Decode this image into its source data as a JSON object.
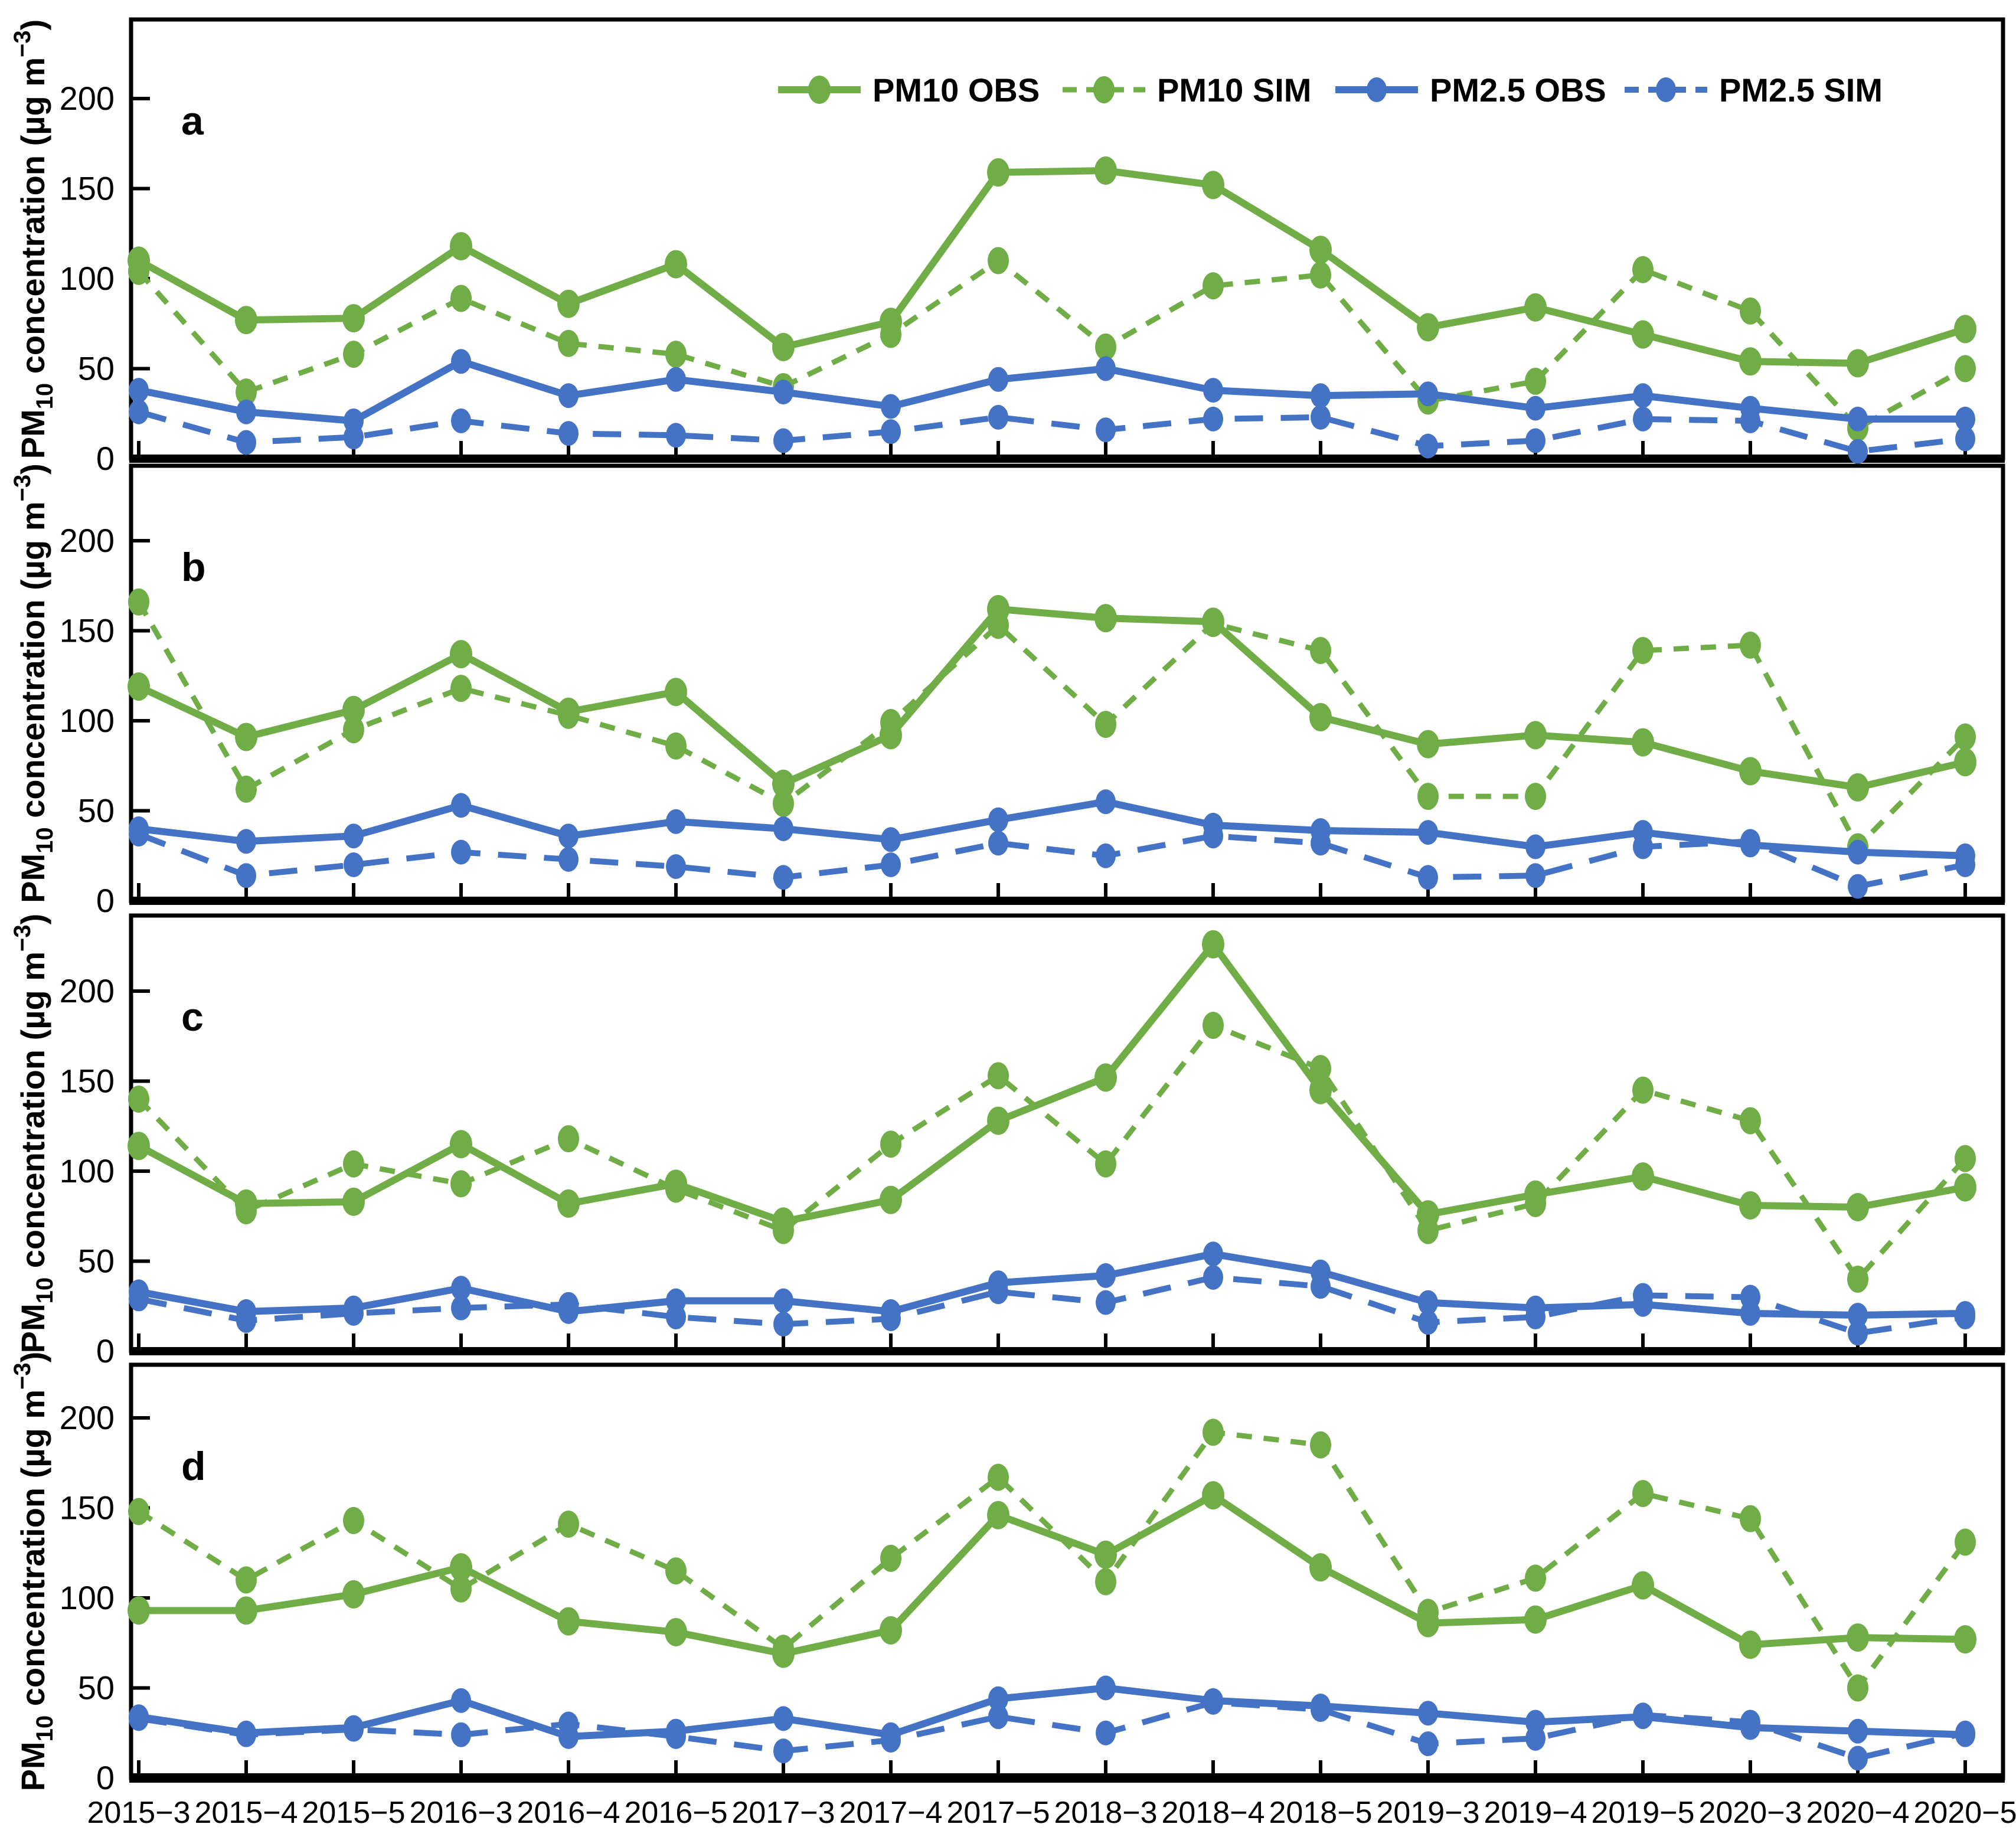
{
  "figure": {
    "kind": "four-panel time-series line chart",
    "background": "#ffffff",
    "panel_letters": [
      "a",
      "b",
      "c",
      "d"
    ]
  },
  "colors": {
    "pm10": "#70AD47",
    "pm25": "#4472C4",
    "axis": "#000000"
  },
  "axes": {
    "y_label_display": "PM₁₀ concentration (µg m⁻³)",
    "y_label_parts": {
      "prefix": "PM",
      "subscript": "10",
      "middle": " concentration (µg m",
      "superscript": "−3",
      "suffix": ")"
    },
    "y_ticks": [
      0,
      50,
      100,
      150,
      200
    ],
    "x_categories": [
      "2015−3",
      "2015−4",
      "2015−5",
      "2016−3",
      "2016−4",
      "2016−5",
      "2017−3",
      "2017−4",
      "2017−5",
      "2018−3",
      "2018−4",
      "2018−5",
      "2019−3",
      "2019−4",
      "2019−5",
      "2020−3",
      "2020−4",
      "2020−5"
    ]
  },
  "legend": {
    "position": "top of panel a, horizontal row",
    "items": [
      {
        "id": "pm10_obs",
        "label": "PM10 OBS",
        "line": "solid",
        "color": "#70AD47"
      },
      {
        "id": "pm10_sim",
        "label": "PM10 SIM",
        "line": "dashed",
        "color": "#70AD47"
      },
      {
        "id": "pm25_obs",
        "label": "PM2.5 OBS",
        "line": "solid",
        "color": "#4472C4"
      },
      {
        "id": "pm25_sim",
        "label": "PM2.5 SIM",
        "line": "dashed",
        "color": "#4472C4"
      }
    ]
  },
  "chart_data": [
    {
      "panel": "a",
      "type": "line",
      "title": "",
      "xlabel": "",
      "ylabel": "PM₁₀ concentration (µg m⁻³)",
      "ylim": [
        0,
        240
      ],
      "grid": false,
      "categories": [
        "2015−3",
        "2015−4",
        "2015−5",
        "2016−3",
        "2016−4",
        "2016−5",
        "2017−3",
        "2017−4",
        "2017−5",
        "2018−3",
        "2018−4",
        "2018−5",
        "2019−3",
        "2019−4",
        "2019−5",
        "2020−3",
        "2020−4",
        "2020−5"
      ],
      "series": [
        {
          "name": "PM10 OBS",
          "values": [
            110,
            77,
            78,
            118,
            86,
            108,
            62,
            76,
            159,
            160,
            152,
            116,
            73,
            84,
            69,
            54,
            53,
            72
          ]
        },
        {
          "name": "PM10 SIM",
          "values": [
            104,
            37,
            58,
            89,
            64,
            58,
            40,
            69,
            110,
            62,
            96,
            102,
            32,
            43,
            105,
            82,
            17,
            50
          ]
        },
        {
          "name": "PM2.5 OBS",
          "values": [
            38,
            26,
            21,
            54,
            35,
            44,
            37,
            29,
            44,
            50,
            38,
            35,
            36,
            28,
            35,
            28,
            22,
            22
          ]
        },
        {
          "name": "PM2.5 SIM",
          "values": [
            26,
            9,
            12,
            21,
            14,
            13,
            10,
            15,
            23,
            16,
            22,
            23,
            7,
            10,
            22,
            21,
            4,
            11
          ]
        }
      ]
    },
    {
      "panel": "b",
      "type": "line",
      "title": "",
      "xlabel": "",
      "ylabel": "PM₁₀ concentration (µg m⁻³)",
      "ylim": [
        0,
        240
      ],
      "grid": false,
      "categories": [
        "2015−3",
        "2015−4",
        "2015−5",
        "2016−3",
        "2016−4",
        "2016−5",
        "2017−3",
        "2017−4",
        "2017−5",
        "2018−3",
        "2018−4",
        "2018−5",
        "2019−3",
        "2019−4",
        "2019−5",
        "2020−3",
        "2020−4",
        "2020−5"
      ],
      "series": [
        {
          "name": "PM10 OBS",
          "values": [
            119,
            91,
            106,
            137,
            105,
            116,
            65,
            92,
            162,
            157,
            155,
            102,
            87,
            92,
            88,
            72,
            63,
            77
          ]
        },
        {
          "name": "PM10 SIM",
          "values": [
            166,
            62,
            95,
            118,
            103,
            86,
            54,
            99,
            153,
            98,
            154,
            139,
            58,
            58,
            139,
            142,
            30,
            91
          ]
        },
        {
          "name": "PM2.5 OBS",
          "values": [
            40,
            33,
            36,
            53,
            36,
            44,
            40,
            34,
            45,
            55,
            42,
            39,
            38,
            30,
            38,
            31,
            27,
            25
          ]
        },
        {
          "name": "PM2.5 SIM",
          "values": [
            37,
            14,
            20,
            27,
            23,
            19,
            13,
            20,
            32,
            25,
            36,
            32,
            13,
            14,
            30,
            33,
            8,
            20
          ]
        }
      ]
    },
    {
      "panel": "c",
      "type": "line",
      "title": "",
      "xlabel": "",
      "ylabel": "PM₁₀ concentration (µg m⁻³)",
      "ylim": [
        0,
        240
      ],
      "grid": false,
      "categories": [
        "2015−3",
        "2015−4",
        "2015−5",
        "2016−3",
        "2016−4",
        "2016−5",
        "2017−3",
        "2017−4",
        "2017−5",
        "2018−3",
        "2018−4",
        "2018−5",
        "2019−3",
        "2019−4",
        "2019−5",
        "2020−3",
        "2020−4",
        "2020−5"
      ],
      "series": [
        {
          "name": "PM10 OBS",
          "values": [
            114,
            82,
            83,
            115,
            82,
            93,
            72,
            84,
            128,
            152,
            226,
            145,
            76,
            87,
            97,
            81,
            80,
            91
          ]
        },
        {
          "name": "PM10 SIM",
          "values": [
            140,
            78,
            104,
            93,
            118,
            90,
            67,
            115,
            153,
            104,
            181,
            157,
            67,
            82,
            145,
            128,
            40,
            107
          ]
        },
        {
          "name": "PM2.5 OBS",
          "values": [
            33,
            22,
            24,
            35,
            22,
            28,
            28,
            22,
            38,
            42,
            54,
            44,
            27,
            24,
            26,
            21,
            20,
            21
          ]
        },
        {
          "name": "PM2.5 SIM",
          "values": [
            29,
            17,
            21,
            24,
            26,
            19,
            15,
            18,
            33,
            27,
            41,
            36,
            16,
            19,
            31,
            30,
            10,
            19
          ]
        }
      ]
    },
    {
      "panel": "d",
      "type": "line",
      "title": "",
      "xlabel": "",
      "ylabel": "PM₁₀ concentration (µg m⁻³)",
      "ylim": [
        0,
        230
      ],
      "grid": false,
      "categories": [
        "2015−3",
        "2015−4",
        "2015−5",
        "2016−3",
        "2016−4",
        "2016−5",
        "2017−3",
        "2017−4",
        "2017−5",
        "2018−3",
        "2018−4",
        "2018−5",
        "2019−3",
        "2019−4",
        "2019−5",
        "2020−3",
        "2020−4",
        "2020−5"
      ],
      "series": [
        {
          "name": "PM10 OBS",
          "values": [
            93,
            93,
            102,
            117,
            87,
            81,
            69,
            82,
            146,
            124,
            157,
            117,
            86,
            88,
            107,
            74,
            78,
            77
          ]
        },
        {
          "name": "PM10 SIM",
          "values": [
            148,
            110,
            143,
            105,
            141,
            115,
            72,
            122,
            167,
            109,
            192,
            185,
            92,
            111,
            158,
            144,
            50,
            131
          ]
        },
        {
          "name": "PM2.5 OBS",
          "values": [
            34,
            25,
            28,
            43,
            23,
            26,
            33,
            24,
            44,
            50,
            43,
            40,
            36,
            31,
            34,
            28,
            26,
            24
          ]
        },
        {
          "name": "PM2.5 SIM",
          "values": [
            33,
            24,
            27,
            24,
            30,
            23,
            15,
            21,
            34,
            25,
            42,
            38,
            19,
            22,
            35,
            31,
            11,
            25
          ]
        }
      ]
    }
  ]
}
